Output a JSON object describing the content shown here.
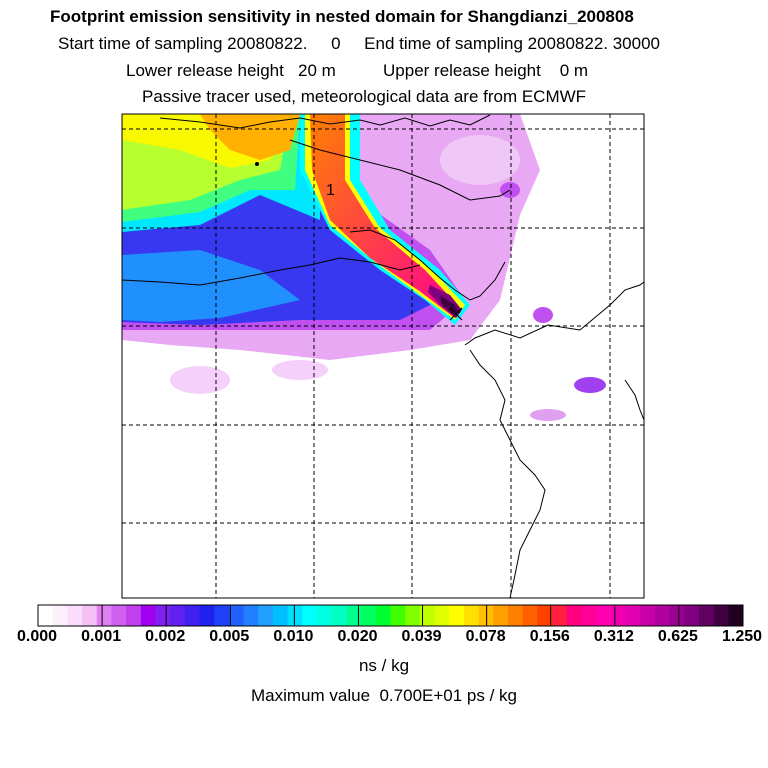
{
  "header": {
    "title": "Footprint emission sensitivity in nested domain for Shangdianzi_200808",
    "sampling": "Start time of sampling 20080822.     0     End time of sampling 20080822. 30000",
    "release": "Lower release height   20 m          Upper release height    0 m",
    "tracer": "Passive tracer used, meteorological data are from ECMWF"
  },
  "map": {
    "receptor_label": "1",
    "receptor_marker": "x-mark",
    "coastline_color": "#000000",
    "grid_style": "dashed"
  },
  "colorbar": {
    "labels": [
      "0.000",
      "0.001",
      "0.002",
      "0.005",
      "0.010",
      "0.020",
      "0.039",
      "0.078",
      "0.156",
      "0.312",
      "0.625",
      "1.250"
    ],
    "colors": [
      "#ffffff",
      "#fdf0fd",
      "#f9ddfb",
      "#f3c0f6",
      "#e080f0",
      "#d060ef",
      "#c040f0",
      "#a000f0",
      "#8020f0",
      "#6020f0",
      "#4020f0",
      "#2020f0",
      "#2040f8",
      "#2060ff",
      "#2080ff",
      "#20a0ff",
      "#00c0ff",
      "#00e0ff",
      "#00ffff",
      "#00ffe0",
      "#00ffc0",
      "#00ff90",
      "#00ff60",
      "#00ff30",
      "#40ff00",
      "#80ff00",
      "#c0ff00",
      "#e0ff00",
      "#ffff00",
      "#ffe000",
      "#ffc000",
      "#ffa000",
      "#ff8000",
      "#ff6000",
      "#ff4000",
      "#ff2040",
      "#ff0080",
      "#ff0099",
      "#ff00b0",
      "#f000b0",
      "#e000b0",
      "#c800a8",
      "#b000a0",
      "#980090",
      "#800080",
      "#600060",
      "#400040",
      "#200020"
    ],
    "units": "ns / kg",
    "max_value": "Maximum value  0.700E+01 ps / kg"
  }
}
